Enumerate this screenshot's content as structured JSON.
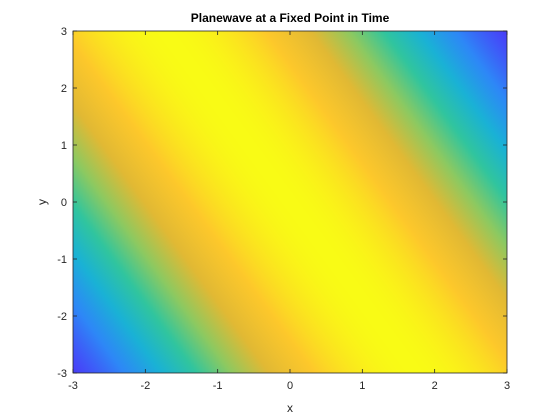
{
  "chart_data": {
    "type": "heatmap",
    "title": "Planewave at a Fixed Point in Time",
    "xlabel": "x",
    "ylabel": "y",
    "xlim": [
      -3,
      3
    ],
    "ylim": [
      -3,
      3
    ],
    "x_ticks": [
      -3,
      -2,
      -1,
      0,
      1,
      2,
      3
    ],
    "y_ticks": [
      -3,
      -2,
      -1,
      0,
      1,
      2,
      3
    ],
    "x_tick_labels": [
      "-3",
      "-2",
      "-1",
      "0",
      "1",
      "2",
      "3"
    ],
    "y_tick_labels": [
      "-3",
      "-2",
      "-1",
      "0",
      "1",
      "2",
      "3"
    ],
    "field": {
      "function": "cos(k·r)",
      "wavevector": [
        0.52,
        0.3
      ],
      "value_range": [
        -1,
        1
      ]
    },
    "colormap": "parula",
    "colormap_stops": [
      "#3e26a8",
      "#4743f8",
      "#2e87f7",
      "#1ab2d5",
      "#31c59e",
      "#8ec960",
      "#e1b934",
      "#fdc82b",
      "#f9fb15"
    ],
    "grid": false,
    "legend": "none"
  }
}
